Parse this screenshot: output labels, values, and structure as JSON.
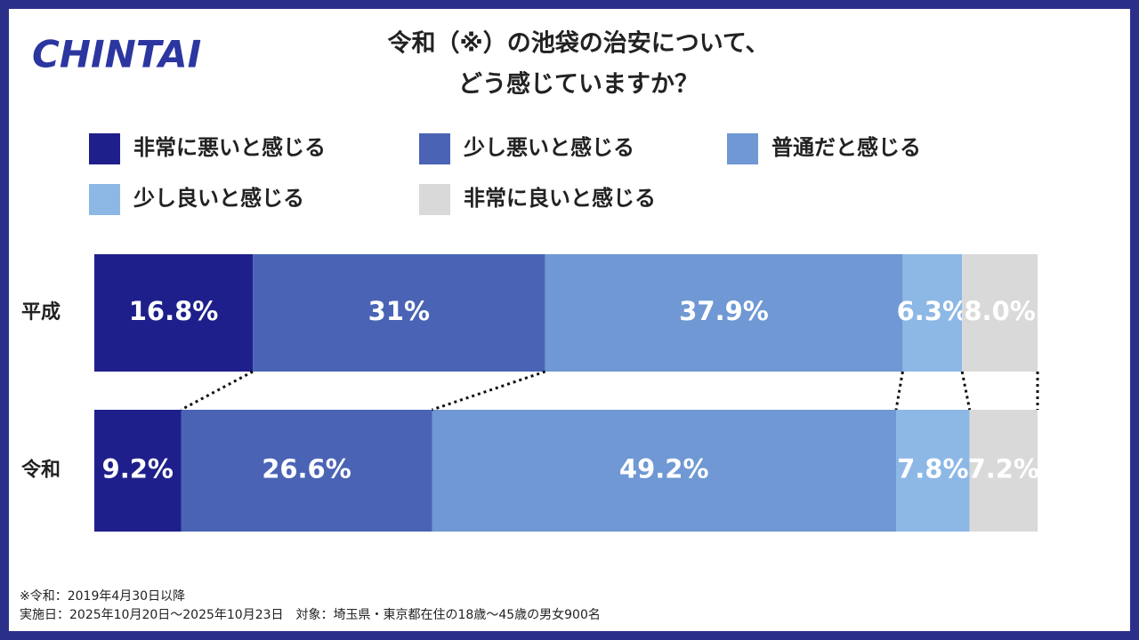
{
  "logo": "CHINTAI",
  "chart_data": {
    "type": "stacked-bar-horizontal",
    "title": [
      "令和（※）の池袋の治安について、",
      "どう感じていますか？"
    ],
    "categories": [
      "平成",
      "令和"
    ],
    "xlim": [
      0,
      100
    ],
    "series": [
      {
        "name": "非常に悪いと感じる",
        "color": "#1f1f8c",
        "values": [
          16.8,
          9.2
        ],
        "value_labels": [
          "16.8%",
          "9.2%"
        ]
      },
      {
        "name": "少し悪いと感じる",
        "color": "#4a63b5",
        "values": [
          31,
          26.6
        ],
        "value_labels": [
          "31%",
          "26.6%"
        ]
      },
      {
        "name": "普通だと感じる",
        "color": "#6f98d4",
        "values": [
          37.9,
          49.2
        ],
        "value_labels": [
          "37.9%",
          "49.2%"
        ]
      },
      {
        "name": "少し良いと感じる",
        "color": "#8db8e6",
        "values": [
          6.3,
          7.8
        ],
        "value_labels": [
          "6.3%",
          "7.8%"
        ]
      },
      {
        "name": "非常に良いと感じる",
        "color": "#d9d9d9",
        "values": [
          8.0,
          7.2
        ],
        "value_labels": [
          "8.0%",
          "7.2%"
        ]
      }
    ]
  },
  "notes": [
    "※令和：2019年4月30日以降",
    "実施日：2025年10月20日～2025年10月23日　対象：埼玉県・東京都在住の18歳～45歳の男女900名"
  ]
}
